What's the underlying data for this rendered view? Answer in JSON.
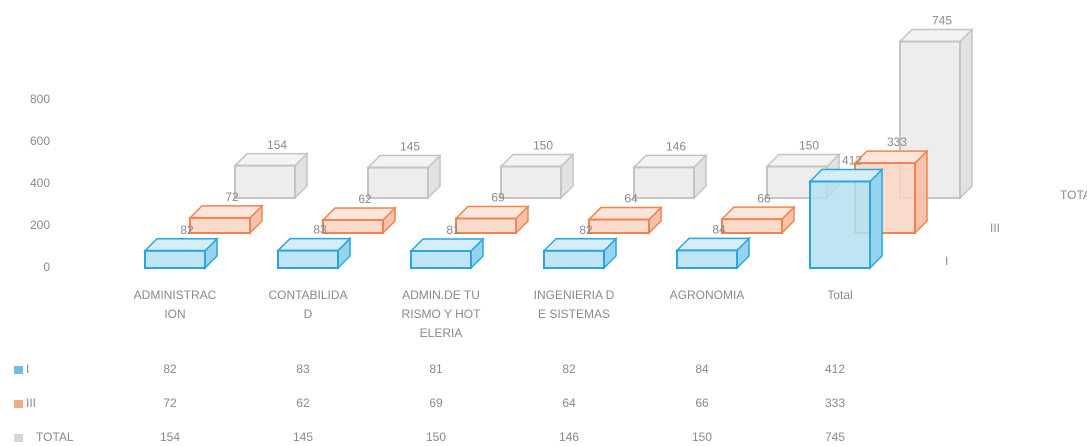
{
  "chart_data": {
    "type": "bar3d",
    "categories": [
      "ADMINISTRACION",
      "CONTABILIDAD",
      "ADMIN.DE TURISMO Y HOTELERIA",
      "INGENIERIA DE SISTEMAS",
      "AGRONOMIA",
      "Total"
    ],
    "series": [
      {
        "name": "I",
        "color": "#2aa6dd",
        "values": [
          82,
          83,
          81,
          82,
          84,
          412
        ]
      },
      {
        "name": "III",
        "color": "#ee8452",
        "values": [
          72,
          62,
          69,
          64,
          66,
          333
        ]
      },
      {
        "name": "TOTAL",
        "color": "#c4c4c4",
        "values": [
          154,
          145,
          150,
          146,
          150,
          745
        ]
      }
    ],
    "ylim": [
      0,
      800
    ],
    "yticks": [
      0,
      200,
      400,
      600,
      800
    ],
    "grid": false
  }
}
